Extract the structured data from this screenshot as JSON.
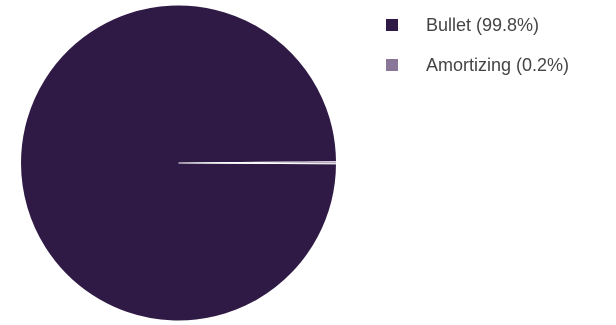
{
  "chart_data": {
    "type": "pie",
    "legend_position": "right",
    "slices": [
      {
        "label": "Bullet (99.8%)",
        "value": 99.8,
        "color": "#2f1a45"
      },
      {
        "label": "Amortizing (0.2%)",
        "value": 0.2,
        "color": "#8a7797"
      }
    ]
  }
}
